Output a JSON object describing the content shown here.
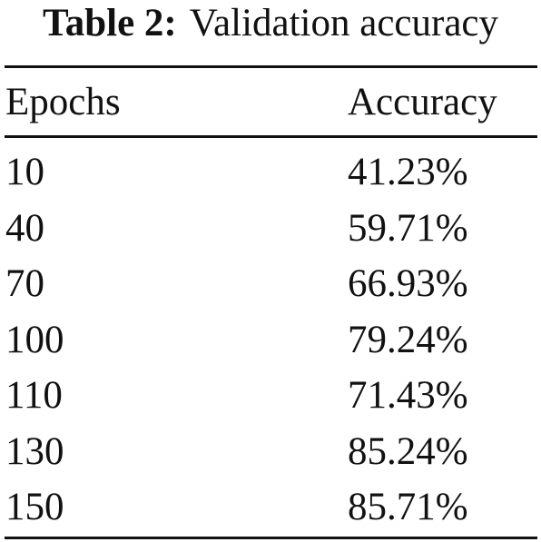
{
  "caption": {
    "label": "Table 2:",
    "text": "Validation accuracy"
  },
  "table": {
    "headers": [
      "Epochs",
      "Accuracy"
    ],
    "rows": [
      [
        "10",
        "41.23%"
      ],
      [
        "40",
        "59.71%"
      ],
      [
        "70",
        "66.93%"
      ],
      [
        "100",
        "79.24%"
      ],
      [
        "110",
        "71.43%"
      ],
      [
        "130",
        "85.24%"
      ],
      [
        "150",
        "85.71%"
      ]
    ]
  },
  "chart_data": {
    "type": "table",
    "title": "Validation accuracy",
    "columns": [
      "Epochs",
      "Accuracy"
    ],
    "x": [
      10,
      40,
      70,
      100,
      110,
      130,
      150
    ],
    "values": [
      41.23,
      59.71,
      66.93,
      79.24,
      71.43,
      85.24,
      85.71
    ]
  }
}
